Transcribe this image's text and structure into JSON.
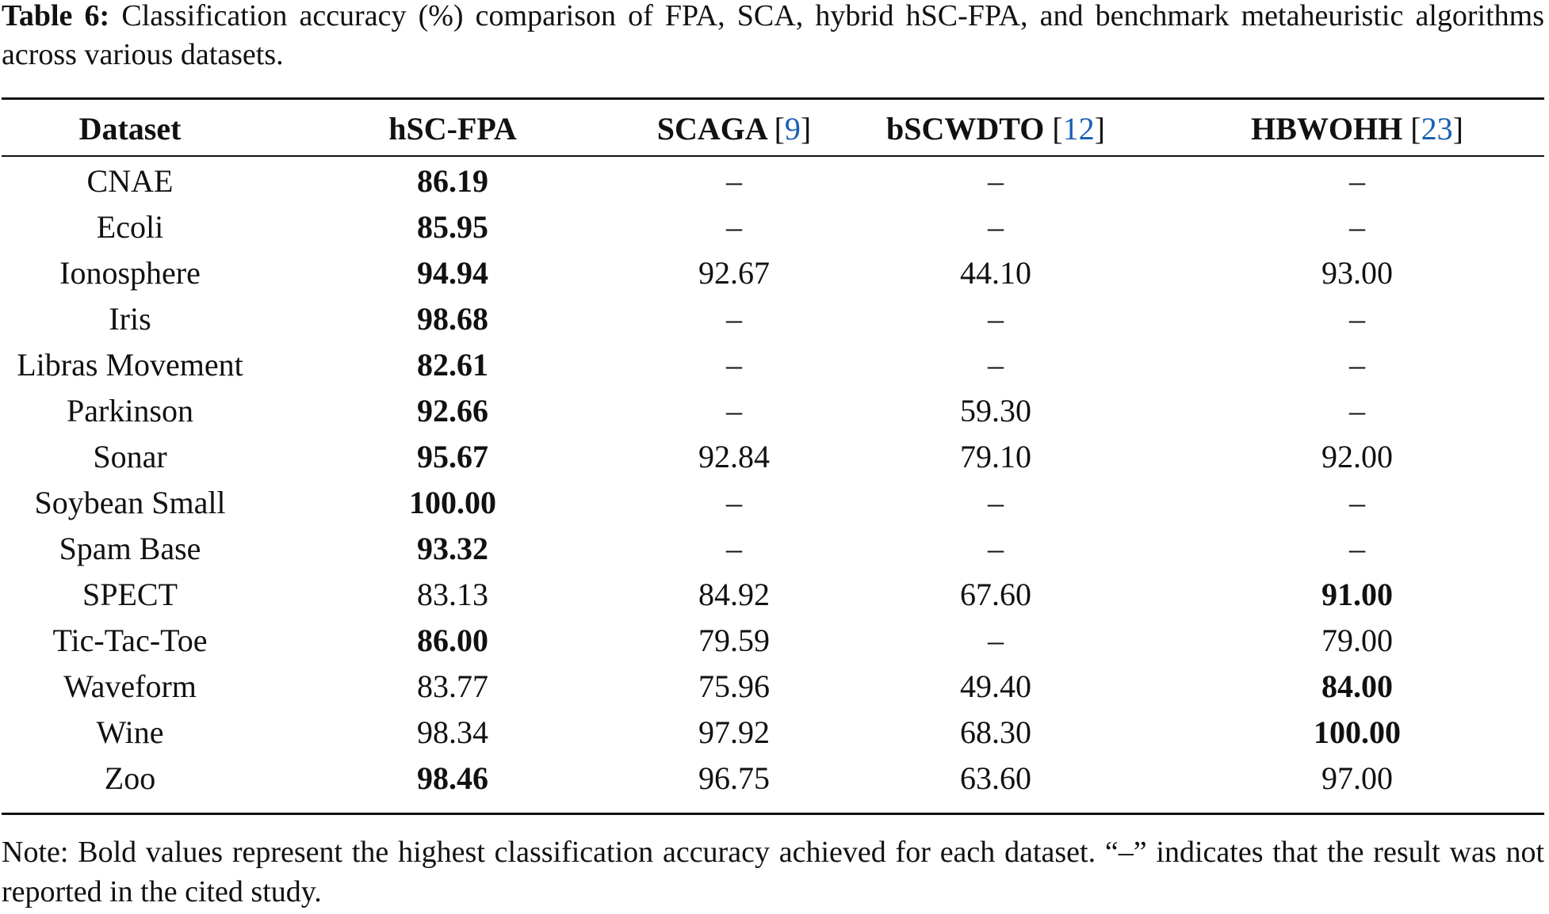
{
  "caption": {
    "label": "Table 6:",
    "text": "Classification accuracy (%) comparison of FPA, SCA, hybrid hSC-FPA, and benchmark metaheuristic algorithms across various datasets."
  },
  "table": {
    "headers": [
      {
        "text": "Dataset",
        "ref": null
      },
      {
        "text": "hSC-FPA",
        "ref": null
      },
      {
        "text": "SCAGA",
        "ref": "9"
      },
      {
        "text": "bSCWDTO",
        "ref": "12"
      },
      {
        "text": "HBWOHH",
        "ref": "23"
      }
    ],
    "rows": [
      {
        "dataset": "CNAE",
        "values": [
          "86.19",
          "–",
          "–",
          "–"
        ],
        "best": [
          0
        ]
      },
      {
        "dataset": "Ecoli",
        "values": [
          "85.95",
          "–",
          "–",
          "–"
        ],
        "best": [
          0
        ]
      },
      {
        "dataset": "Ionosphere",
        "values": [
          "94.94",
          "92.67",
          "44.10",
          "93.00"
        ],
        "best": [
          0
        ]
      },
      {
        "dataset": "Iris",
        "values": [
          "98.68",
          "–",
          "–",
          "–"
        ],
        "best": [
          0
        ]
      },
      {
        "dataset": "Libras Movement",
        "values": [
          "82.61",
          "–",
          "–",
          "–"
        ],
        "best": [
          0
        ]
      },
      {
        "dataset": "Parkinson",
        "values": [
          "92.66",
          "–",
          "59.30",
          "–"
        ],
        "best": [
          0
        ]
      },
      {
        "dataset": "Sonar",
        "values": [
          "95.67",
          "92.84",
          "79.10",
          "92.00"
        ],
        "best": [
          0
        ]
      },
      {
        "dataset": "Soybean Small",
        "values": [
          "100.00",
          "–",
          "–",
          "–"
        ],
        "best": [
          0
        ]
      },
      {
        "dataset": "Spam Base",
        "values": [
          "93.32",
          "–",
          "–",
          "–"
        ],
        "best": [
          0
        ]
      },
      {
        "dataset": "SPECT",
        "values": [
          "83.13",
          "84.92",
          "67.60",
          "91.00"
        ],
        "best": [
          3
        ]
      },
      {
        "dataset": "Tic-Tac-Toe",
        "values": [
          "86.00",
          "79.59",
          "–",
          "79.00"
        ],
        "best": [
          0
        ]
      },
      {
        "dataset": "Waveform",
        "values": [
          "83.77",
          "75.96",
          "49.40",
          "84.00"
        ],
        "best": [
          3
        ]
      },
      {
        "dataset": "Wine",
        "values": [
          "98.34",
          "97.92",
          "68.30",
          "100.00"
        ],
        "best": [
          3
        ]
      },
      {
        "dataset": "Zoo",
        "values": [
          "98.46",
          "96.75",
          "63.60",
          "97.00"
        ],
        "best": [
          0
        ]
      }
    ]
  },
  "note": "Note: Bold values represent the highest classification accuracy achieved for each dataset. “–” indicates that the result was not reported in the cited study.",
  "colors": {
    "text": "#111111",
    "reference_link": "#1a5fb4"
  }
}
